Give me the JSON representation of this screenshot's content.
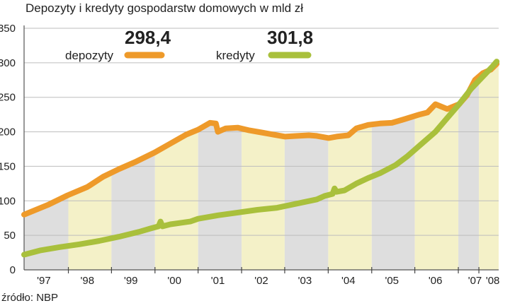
{
  "title": "Depozyty i kredyty gospodarstw domowych w mld zł",
  "source": "źródło: NBP",
  "colors": {
    "depozyty": "#ee9a2a",
    "kredyty": "#a9c03c",
    "band_gray": "#dedede",
    "band_yellow": "#f4f1c8",
    "grid": "#bdbdbd"
  },
  "chart_data": {
    "type": "line",
    "title": "Depozyty i kredyty gospodarstw domowych w mld zł",
    "ylim": [
      0,
      350
    ],
    "yticks": [
      "0",
      "50",
      "100",
      "150",
      "200",
      "250",
      "300",
      "350"
    ],
    "ytick_values": [
      0,
      50,
      100,
      150,
      200,
      250,
      300,
      350
    ],
    "xlim": [
      1996.6,
      2008.6
    ],
    "categories": [
      "'97",
      "'98",
      "'99",
      "'00",
      "'01",
      "'02",
      "'03",
      "'04",
      "'05",
      "'06",
      "'07",
      "'08"
    ],
    "category_centers": [
      1997.1,
      1998.2,
      1999.3,
      2000.4,
      2001.5,
      2002.6,
      2003.7,
      2004.8,
      2005.9,
      2007.0,
      2008.0,
      2008.45
    ],
    "year_bands": [
      {
        "from": 1996.6,
        "to": 1997.72,
        "shade": "gray"
      },
      {
        "from": 1997.72,
        "to": 1998.81,
        "shade": "yellow"
      },
      {
        "from": 1998.81,
        "to": 1999.91,
        "shade": "gray"
      },
      {
        "from": 1999.91,
        "to": 2001.0,
        "shade": "yellow"
      },
      {
        "from": 2001.0,
        "to": 2002.1,
        "shade": "gray"
      },
      {
        "from": 2002.1,
        "to": 2003.19,
        "shade": "yellow"
      },
      {
        "from": 2003.19,
        "to": 2004.29,
        "shade": "gray"
      },
      {
        "from": 2004.29,
        "to": 2005.39,
        "shade": "yellow"
      },
      {
        "from": 2005.39,
        "to": 2006.48,
        "shade": "gray"
      },
      {
        "from": 2006.48,
        "to": 2007.58,
        "shade": "yellow"
      },
      {
        "from": 2007.58,
        "to": 2008.1,
        "shade": "gray"
      },
      {
        "from": 2008.1,
        "to": 2008.6,
        "shade": "yellow"
      }
    ],
    "series": [
      {
        "name": "depozyty",
        "color": "#ee9a2a",
        "last_value_label": "298,4",
        "x": [
          1996.6,
          1997.2,
          1997.7,
          1998.2,
          1998.6,
          1999.0,
          1999.4,
          1999.9,
          2000.3,
          2000.7,
          2001.0,
          2001.3,
          2001.45,
          2001.5,
          2001.7,
          2002.0,
          2002.3,
          2002.6,
          2002.9,
          2003.2,
          2003.5,
          2003.8,
          2004.0,
          2004.3,
          2004.5,
          2004.8,
          2005.0,
          2005.3,
          2005.6,
          2005.9,
          2006.2,
          2006.6,
          2006.8,
          2007.0,
          2007.3,
          2007.6,
          2007.8,
          2008.0,
          2008.2,
          2008.4,
          2008.55
        ],
        "values": [
          80,
          94,
          108,
          120,
          135,
          146,
          156,
          170,
          183,
          196,
          203,
          213,
          212,
          200,
          205,
          206,
          202,
          199,
          196,
          193,
          194,
          195,
          194,
          191,
          193,
          195,
          205,
          210,
          212,
          213,
          218,
          225,
          228,
          240,
          233,
          240,
          253,
          275,
          285,
          290,
          298.4
        ]
      },
      {
        "name": "kredyty",
        "color": "#a9c03c",
        "last_value_label": "301,8",
        "x": [
          1996.6,
          1997.0,
          1997.5,
          1998.0,
          1998.5,
          1999.0,
          1999.5,
          1999.8,
          2000.0,
          2000.05,
          2000.1,
          2000.3,
          2000.8,
          2001.0,
          2001.5,
          2002.0,
          2002.5,
          2003.0,
          2003.5,
          2004.0,
          2004.2,
          2004.4,
          2004.45,
          2004.5,
          2004.7,
          2005.0,
          2005.3,
          2005.6,
          2006.0,
          2006.3,
          2006.6,
          2007.0,
          2007.3,
          2007.6,
          2007.9,
          2008.2,
          2008.45,
          2008.55
        ],
        "values": [
          22,
          28,
          33,
          37,
          42,
          48,
          55,
          60,
          63,
          70,
          63,
          66,
          70,
          74,
          79,
          83,
          87,
          90,
          96,
          102,
          107,
          110,
          118,
          113,
          115,
          125,
          133,
          140,
          152,
          165,
          180,
          200,
          220,
          240,
          262,
          280,
          295,
          301.8
        ]
      }
    ]
  }
}
